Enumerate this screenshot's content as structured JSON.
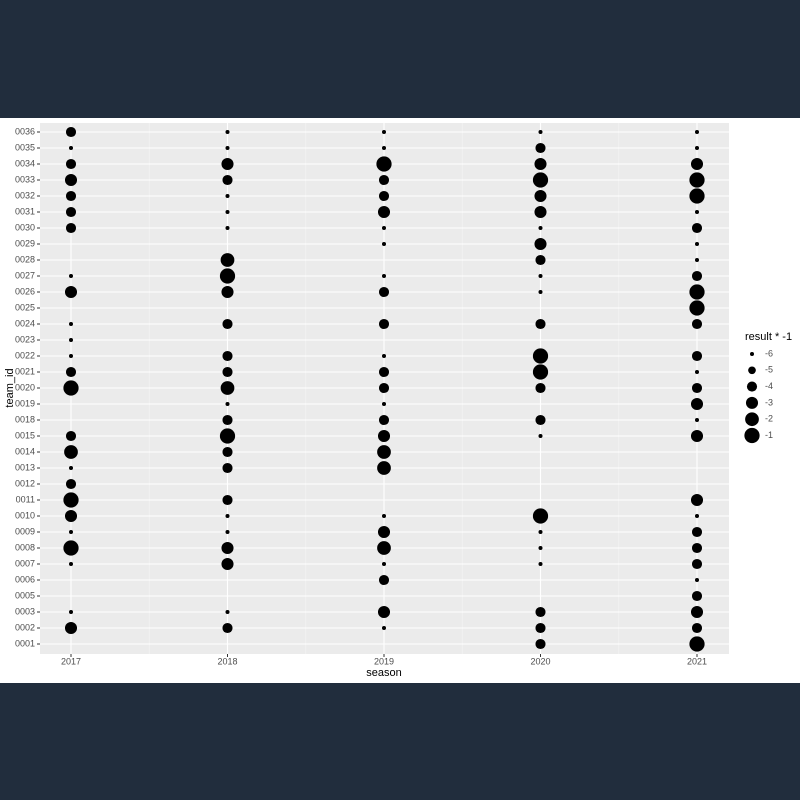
{
  "chart_data": {
    "type": "scatter",
    "x_label": "season",
    "y_label": "team_id",
    "x_categories": [
      "2017",
      "2018",
      "2019",
      "2020",
      "2021"
    ],
    "y_categories": [
      "0001",
      "0002",
      "0003",
      "0005",
      "0006",
      "0007",
      "0008",
      "0009",
      "0010",
      "0011",
      "0012",
      "0013",
      "0014",
      "0015",
      "0018",
      "0019",
      "0020",
      "0021",
      "0022",
      "0023",
      "0024",
      "0025",
      "0026",
      "0027",
      "0028",
      "0029",
      "0030",
      "0031",
      "0032",
      "0033",
      "0034",
      "0035",
      "0036"
    ],
    "values": [
      [
        null,
        -3,
        -6,
        null,
        null,
        -6,
        -1,
        -6,
        -3,
        -1,
        -4,
        -6,
        -2,
        -4,
        null,
        null,
        -1,
        -4,
        -6,
        -6,
        -6,
        null,
        -3,
        -6,
        null,
        null,
        -4,
        -4,
        -4,
        -3,
        -4,
        -6,
        -4
      ],
      [
        null,
        -4,
        -6,
        null,
        null,
        -3,
        -3,
        -6,
        -6,
        -4,
        null,
        -4,
        -4,
        -1,
        -4,
        -6,
        -2,
        -4,
        -4,
        null,
        -4,
        null,
        -3,
        -1,
        -2,
        null,
        -6,
        -6,
        -6,
        -4,
        -3,
        -6,
        -6
      ],
      [
        null,
        -6,
        -3,
        null,
        -4,
        -6,
        -2,
        -3,
        -6,
        null,
        null,
        -2,
        -2,
        -3,
        -4,
        -6,
        -4,
        -4,
        -6,
        null,
        -4,
        null,
        -4,
        -6,
        null,
        -6,
        -6,
        -3,
        -4,
        -4,
        -1,
        -6,
        -6
      ],
      [
        -4,
        -4,
        -4,
        null,
        null,
        -6,
        -6,
        -6,
        -1,
        null,
        null,
        null,
        null,
        -6,
        -4,
        null,
        -4,
        -1,
        -1,
        null,
        -4,
        null,
        -6,
        -6,
        -4,
        -3,
        -6,
        -3,
        -3,
        -1,
        -3,
        -4,
        -6
      ],
      [
        -1,
        -4,
        -3,
        -4,
        -6,
        -4,
        -4,
        -4,
        -6,
        -3,
        null,
        null,
        null,
        -3,
        -6,
        -3,
        -4,
        -6,
        -4,
        null,
        -4,
        -1,
        -1,
        -4,
        -6,
        -6,
        -4,
        -6,
        -1,
        -1,
        -3,
        -6,
        -6
      ]
    ],
    "color": "#000000",
    "legend_title": "result * -1",
    "size_legend": [
      -6,
      -5,
      -4,
      -3,
      -2,
      -1
    ],
    "grid": true
  }
}
